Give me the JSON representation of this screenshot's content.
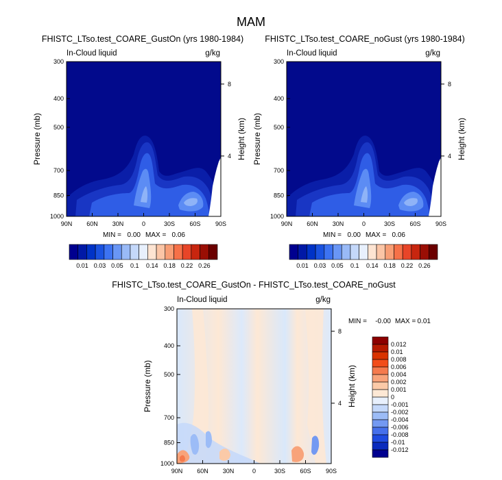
{
  "figure": {
    "title": "MAM",
    "colors": {
      "frame": "#000000",
      "field_background": "#020a8c"
    }
  },
  "chart_data": [
    {
      "type": "heatmap",
      "title": "FHISTC_LTso.test_COARE_GustOn (yrs 1980-1984)",
      "left_label": "In-Cloud liquid",
      "right_label": "g/kg",
      "xlabel": "",
      "ylabel": "Pressure (mb)",
      "y2label": "Height (km)",
      "x_ticks": [
        "90N",
        "60N",
        "30N",
        "0",
        "30S",
        "60S",
        "90S"
      ],
      "x_range": [
        90,
        -90
      ],
      "y_ticks": [
        "300",
        "400",
        "500",
        "700",
        "850",
        "1000"
      ],
      "y_range": [
        300,
        1000
      ],
      "y_log": true,
      "y2_ticks": [
        "8",
        "4"
      ],
      "stats": {
        "min_label": "MIN =",
        "min": "0.00",
        "max_label": "MAX =",
        "max": "0.06"
      },
      "colorbar": {
        "orientation": "horizontal",
        "labels": [
          "0.01",
          "0.03",
          "0.05",
          "0.1",
          "0.14",
          "0.18",
          "0.22",
          "0.26"
        ],
        "colors": [
          "#00008f",
          "#0019a6",
          "#0033c7",
          "#1a52e0",
          "#3d73f2",
          "#6996f5",
          "#99baf7",
          "#c4d8fa",
          "#e8f0fd",
          "#fde4d2",
          "#fbc5a6",
          "#f89e75",
          "#f67148",
          "#e84528",
          "#c8260f",
          "#9a0e04",
          "#6b0000"
        ]
      }
    },
    {
      "type": "heatmap",
      "title": "FHISTC_LTso.test_COARE_noGust (yrs 1980-1984)",
      "left_label": "In-Cloud liquid",
      "right_label": "g/kg",
      "xlabel": "",
      "ylabel": "Pressure (mb)",
      "y2label": "Height (km)",
      "x_ticks": [
        "90N",
        "60N",
        "30N",
        "0",
        "30S",
        "60S",
        "90S"
      ],
      "x_range": [
        90,
        -90
      ],
      "y_ticks": [
        "300",
        "400",
        "500",
        "700",
        "850",
        "1000"
      ],
      "y_range": [
        300,
        1000
      ],
      "y_log": true,
      "y2_ticks": [
        "8",
        "4"
      ],
      "stats": {
        "min_label": "MIN =",
        "min": "0.00",
        "max_label": "MAX =",
        "max": "0.06"
      },
      "colorbar": {
        "orientation": "horizontal",
        "labels": [
          "0.01",
          "0.03",
          "0.05",
          "0.1",
          "0.14",
          "0.18",
          "0.22",
          "0.26"
        ],
        "colors": [
          "#00008f",
          "#0019a6",
          "#0033c7",
          "#1a52e0",
          "#3d73f2",
          "#6996f5",
          "#99baf7",
          "#c4d8fa",
          "#e8f0fd",
          "#fde4d2",
          "#fbc5a6",
          "#f89e75",
          "#f67148",
          "#e84528",
          "#c8260f",
          "#9a0e04",
          "#6b0000"
        ]
      }
    },
    {
      "type": "heatmap",
      "title": "FHISTC_LTso.test_COARE_GustOn - FHISTC_LTso.test_COARE_noGust",
      "left_label": "In-Cloud liquid",
      "right_label": "g/kg",
      "xlabel": "",
      "ylabel": "Pressure (mb)",
      "y2label": "Height (km)",
      "x_ticks": [
        "90N",
        "60N",
        "30N",
        "0",
        "30S",
        "60S",
        "90S"
      ],
      "x_range": [
        90,
        -90
      ],
      "y_ticks": [
        "300",
        "400",
        "500",
        "700",
        "850",
        "1000"
      ],
      "y_range": [
        300,
        1000
      ],
      "y_log": true,
      "y2_ticks": [
        "8",
        "4"
      ],
      "stats": {
        "min_label": "MIN =",
        "min": "-0.00",
        "max_label": "MAX =",
        "max": "0.01"
      },
      "colorbar": {
        "orientation": "vertical",
        "labels": [
          "0.012",
          "0.01",
          "0.008",
          "0.006",
          "0.004",
          "0.002",
          "0.001",
          "0",
          "-0.001",
          "-0.002",
          "-0.004",
          "-0.006",
          "-0.008",
          "-0.01",
          "-0.012"
        ],
        "colors": [
          "#8c0000",
          "#b51a00",
          "#d93300",
          "#f24d1a",
          "#f57a4d",
          "#f8a37a",
          "#fbcaa8",
          "#fde8d5",
          "#e8f0fd",
          "#c4d8fa",
          "#9cbcf7",
          "#7399f2",
          "#4670eb",
          "#1f4be0",
          "#0a2bbd",
          "#00008f"
        ]
      }
    }
  ]
}
